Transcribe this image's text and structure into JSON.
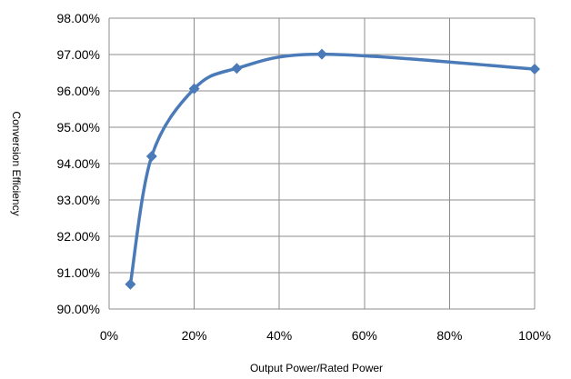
{
  "chart_data": {
    "type": "line",
    "title": "",
    "xlabel": "Output Power/Rated Power",
    "ylabel": "Conversion Efficiency",
    "x_unit": "%",
    "xlim": [
      0,
      100
    ],
    "ylim": [
      90,
      98
    ],
    "x_ticks": [
      "0%",
      "20%",
      "40%",
      "60%",
      "80%",
      "100%"
    ],
    "y_ticks": [
      "90.00%",
      "91.00%",
      "92.00%",
      "93.00%",
      "94.00%",
      "95.00%",
      "96.00%",
      "97.00%",
      "98.00%"
    ],
    "grid": true,
    "legend": "none",
    "smooth": true,
    "marker": "diamond",
    "colors": {
      "line": "#4a7ab8",
      "marker": "#4a7ab8",
      "grid": "#8c8c8c"
    },
    "series": [
      {
        "x": [
          5,
          10,
          20,
          30,
          50,
          100
        ],
        "values": [
          90.68,
          94.2,
          96.06,
          96.62,
          97.01,
          96.6
        ]
      }
    ]
  }
}
